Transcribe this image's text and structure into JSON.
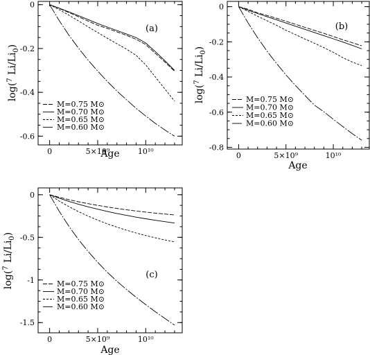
{
  "chart_data": [
    {
      "type": "line",
      "panel_label": "(a)",
      "xlabel": "Age",
      "ylabel": "log(7 Li/Li0)",
      "xlim": [
        -1200000000.0,
        13800000000.0
      ],
      "ylim": [
        -0.64,
        0.015
      ],
      "xticks": [
        {
          "value": 0,
          "label": "0"
        },
        {
          "value": 5000000000.0,
          "label": "5×10⁹"
        },
        {
          "value": 10000000000.0,
          "label": "10¹⁰"
        }
      ],
      "yticks": [
        {
          "value": 0,
          "label": "0"
        },
        {
          "value": -0.2,
          "label": "-0.2"
        },
        {
          "value": -0.4,
          "label": "-0.4"
        },
        {
          "value": -0.6,
          "label": "-0.6"
        }
      ],
      "legend_position": "bottom-left",
      "series": [
        {
          "name": "M=0.75 M⊙",
          "dash": "6 2",
          "x": [
            0,
            1000000000.0,
            2000000000.0,
            3000000000.0,
            4000000000.0,
            5000000000.0,
            6000000000.0,
            7000000000.0,
            8000000000.0,
            9000000000.0,
            10000000000.0,
            11000000000.0,
            12000000000.0,
            13000000000.0
          ],
          "values": [
            0,
            -0.017,
            -0.036,
            -0.055,
            -0.075,
            -0.094,
            -0.108,
            -0.124,
            -0.14,
            -0.158,
            -0.182,
            -0.222,
            -0.262,
            -0.304
          ]
        },
        {
          "name": "M=0.70 M⊙",
          "dash": "",
          "x": [
            0,
            1000000000.0,
            2000000000.0,
            3000000000.0,
            4000000000.0,
            5000000000.0,
            6000000000.0,
            7000000000.0,
            8000000000.0,
            9000000000.0,
            10000000000.0,
            11000000000.0,
            12000000000.0,
            13000000000.0
          ],
          "values": [
            0,
            -0.016,
            -0.033,
            -0.05,
            -0.068,
            -0.086,
            -0.102,
            -0.118,
            -0.134,
            -0.15,
            -0.175,
            -0.214,
            -0.256,
            -0.3
          ]
        },
        {
          "name": "M=0.65 M⊙",
          "dash": "3 2",
          "x": [
            0,
            1000000000.0,
            2000000000.0,
            3000000000.0,
            4000000000.0,
            5000000000.0,
            6000000000.0,
            7000000000.0,
            8000000000.0,
            9000000000.0,
            10000000000.0,
            11000000000.0,
            12000000000.0,
            13000000000.0
          ],
          "values": [
            0,
            -0.023,
            -0.048,
            -0.074,
            -0.101,
            -0.127,
            -0.153,
            -0.178,
            -0.203,
            -0.231,
            -0.275,
            -0.33,
            -0.385,
            -0.44
          ]
        },
        {
          "name": "M=0.60 M⊙",
          "dash": "14 2 2 2",
          "x": [
            0,
            1000000000.0,
            2000000000.0,
            3000000000.0,
            4000000000.0,
            5000000000.0,
            6000000000.0,
            7000000000.0,
            8000000000.0,
            9000000000.0,
            10000000000.0,
            11000000000.0,
            12000000000.0,
            13000000000.0
          ],
          "values": [
            0,
            -0.073,
            -0.139,
            -0.198,
            -0.253,
            -0.303,
            -0.35,
            -0.394,
            -0.434,
            -0.473,
            -0.508,
            -0.542,
            -0.572,
            -0.6
          ]
        }
      ]
    },
    {
      "type": "line",
      "panel_label": "(b)",
      "xlabel": "Age",
      "ylabel": "log(7 Li/Li0)",
      "xlim": [
        -1200000000.0,
        13800000000.0
      ],
      "ylim": [
        -0.81,
        0.03
      ],
      "xticks": [
        {
          "value": 0,
          "label": "0"
        },
        {
          "value": 5000000000.0,
          "label": "5×10⁹"
        },
        {
          "value": 10000000000.0,
          "label": "10¹⁰"
        }
      ],
      "yticks": [
        {
          "value": 0,
          "label": "0"
        },
        {
          "value": -0.2,
          "label": "-0.2"
        },
        {
          "value": -0.4,
          "label": "-0.4"
        },
        {
          "value": -0.6,
          "label": "-0.6"
        },
        {
          "value": -0.8,
          "label": "-0.8"
        }
      ],
      "legend_position": "center-left",
      "series": [
        {
          "name": "M=0.75 M⊙",
          "dash": "6 2",
          "x": [
            0,
            1000000000.0,
            2000000000.0,
            3000000000.0,
            4000000000.0,
            5000000000.0,
            6000000000.0,
            7000000000.0,
            8000000000.0,
            9000000000.0,
            10000000000.0,
            11000000000.0,
            12000000000.0,
            13000000000.0
          ],
          "values": [
            0,
            -0.015,
            -0.035,
            -0.05,
            -0.066,
            -0.083,
            -0.1,
            -0.118,
            -0.135,
            -0.152,
            -0.17,
            -0.188,
            -0.205,
            -0.222
          ]
        },
        {
          "name": "M=0.70 M⊙",
          "dash": "",
          "x": [
            0,
            1000000000.0,
            2000000000.0,
            3000000000.0,
            4000000000.0,
            5000000000.0,
            6000000000.0,
            7000000000.0,
            8000000000.0,
            9000000000.0,
            10000000000.0,
            11000000000.0,
            12000000000.0,
            13000000000.0
          ],
          "values": [
            0,
            -0.02,
            -0.039,
            -0.057,
            -0.075,
            -0.093,
            -0.111,
            -0.129,
            -0.147,
            -0.165,
            -0.183,
            -0.201,
            -0.22,
            -0.24
          ]
        },
        {
          "name": "M=0.65 M⊙",
          "dash": "3 2",
          "x": [
            0,
            1000000000.0,
            2000000000.0,
            3000000000.0,
            4000000000.0,
            5000000000.0,
            6000000000.0,
            7000000000.0,
            8000000000.0,
            9000000000.0,
            10000000000.0,
            11000000000.0,
            12000000000.0,
            13000000000.0
          ],
          "values": [
            0,
            -0.027,
            -0.054,
            -0.08,
            -0.106,
            -0.134,
            -0.159,
            -0.184,
            -0.208,
            -0.233,
            -0.26,
            -0.29,
            -0.315,
            -0.335
          ]
        },
        {
          "name": "M=0.60 M⊙",
          "dash": "14 2 2 2",
          "x": [
            0,
            1000000000.0,
            2000000000.0,
            3000000000.0,
            4000000000.0,
            5000000000.0,
            6000000000.0,
            7000000000.0,
            8000000000.0,
            9000000000.0,
            10000000000.0,
            11000000000.0,
            12000000000.0,
            13000000000.0
          ],
          "values": [
            0,
            -0.093,
            -0.176,
            -0.253,
            -0.323,
            -0.388,
            -0.448,
            -0.505,
            -0.56,
            -0.598,
            -0.641,
            -0.682,
            -0.722,
            -0.76
          ]
        }
      ]
    },
    {
      "type": "line",
      "panel_label": "(c)",
      "xlabel": "Age",
      "ylabel": "log(7 Li/Li0)",
      "xlim": [
        -1200000000.0,
        13800000000.0
      ],
      "ylim": [
        -1.62,
        0.08
      ],
      "xticks": [
        {
          "value": 0,
          "label": "0"
        },
        {
          "value": 5000000000.0,
          "label": "5×10⁹"
        },
        {
          "value": 10000000000.0,
          "label": "10¹⁰"
        }
      ],
      "yticks": [
        {
          "value": 0,
          "label": "0"
        },
        {
          "value": -0.5,
          "label": "-0.5"
        },
        {
          "value": -1,
          "label": "-1"
        },
        {
          "value": -1.5,
          "label": "-1.5"
        }
      ],
      "legend_position": "bottom-left",
      "series": [
        {
          "name": "M=0.75 M⊙",
          "dash": "6 2",
          "x": [
            0,
            1000000000.0,
            2000000000.0,
            3000000000.0,
            4000000000.0,
            5000000000.0,
            6000000000.0,
            7000000000.0,
            8000000000.0,
            9000000000.0,
            10000000000.0,
            11000000000.0,
            12000000000.0,
            13000000000.0
          ],
          "values": [
            0,
            -0.03,
            -0.058,
            -0.083,
            -0.105,
            -0.125,
            -0.144,
            -0.161,
            -0.177,
            -0.191,
            -0.204,
            -0.216,
            -0.227,
            -0.237
          ]
        },
        {
          "name": "M=0.70 M⊙",
          "dash": "",
          "x": [
            0,
            1000000000.0,
            2000000000.0,
            3000000000.0,
            4000000000.0,
            5000000000.0,
            6000000000.0,
            7000000000.0,
            8000000000.0,
            9000000000.0,
            10000000000.0,
            11000000000.0,
            12000000000.0,
            13000000000.0
          ],
          "values": [
            0,
            -0.04,
            -0.078,
            -0.112,
            -0.142,
            -0.17,
            -0.196,
            -0.22,
            -0.242,
            -0.263,
            -0.282,
            -0.3,
            -0.316,
            -0.332
          ]
        },
        {
          "name": "M=0.65 M⊙",
          "dash": "3 2",
          "x": [
            0,
            1000000000.0,
            2000000000.0,
            3000000000.0,
            4000000000.0,
            5000000000.0,
            6000000000.0,
            7000000000.0,
            8000000000.0,
            9000000000.0,
            10000000000.0,
            11000000000.0,
            12000000000.0,
            13000000000.0
          ],
          "values": [
            0,
            -0.075,
            -0.14,
            -0.198,
            -0.25,
            -0.298,
            -0.341,
            -0.38,
            -0.416,
            -0.449,
            -0.479,
            -0.506,
            -0.531,
            -0.553
          ]
        },
        {
          "name": "M=0.60 M⊙",
          "dash": "14 2 2 2",
          "x": [
            0,
            1000000000.0,
            2000000000.0,
            3000000000.0,
            4000000000.0,
            5000000000.0,
            6000000000.0,
            7000000000.0,
            8000000000.0,
            9000000000.0,
            10000000000.0,
            11000000000.0,
            12000000000.0,
            13000000000.0
          ],
          "values": [
            0,
            -0.195,
            -0.37,
            -0.525,
            -0.665,
            -0.793,
            -0.909,
            -1.015,
            -1.112,
            -1.203,
            -1.29,
            -1.373,
            -1.452,
            -1.53
          ]
        }
      ]
    }
  ]
}
